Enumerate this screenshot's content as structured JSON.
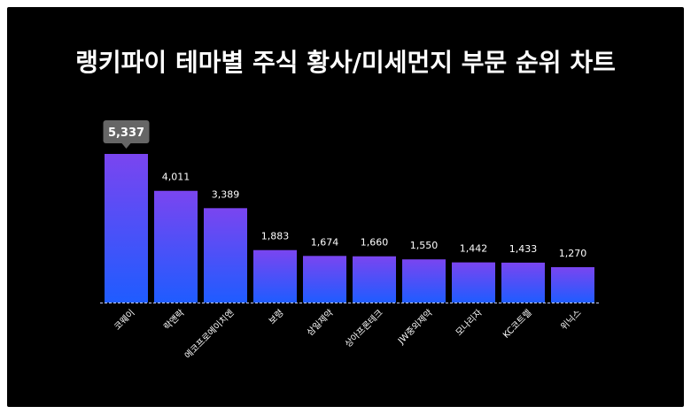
{
  "chart_data": {
    "type": "bar",
    "title": "랭키파이 테마별 주식 황사/미세먼지 부문 순위 차트",
    "categories": [
      "코웨이",
      "락앤락",
      "에코프로에이치엔",
      "보령",
      "삼일제약",
      "상아프론테크",
      "JW중외제약",
      "모나리자",
      "KC코트렐",
      "위닉스"
    ],
    "values": [
      5337,
      4011,
      3389,
      1883,
      1674,
      1660,
      1550,
      1442,
      1433,
      1270
    ],
    "value_labels": [
      "5,337",
      "4,011",
      "3,389",
      "1,883",
      "1,674",
      "1,660",
      "1,550",
      "1,442",
      "1,433",
      "1,270"
    ],
    "highlight_index": 0,
    "ylim": [
      0,
      5337
    ],
    "grid": false,
    "legend": "none",
    "colors": {
      "background": "#000000",
      "bar_top": "#7a45f0",
      "bar_bottom": "#1f5cff",
      "highlight_badge": "#666666",
      "text": "#ffffff",
      "baseline": "#c8d2ff"
    }
  }
}
